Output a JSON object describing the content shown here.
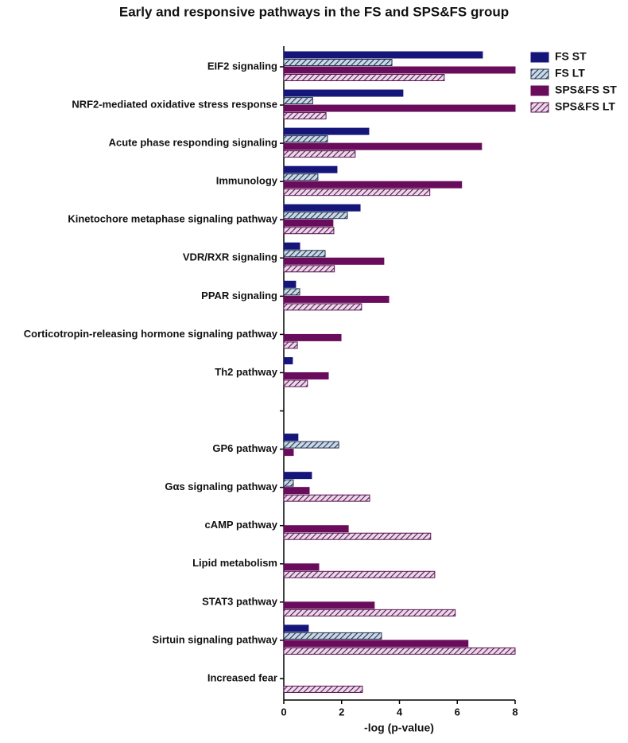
{
  "chart_data": {
    "type": "barh",
    "title": "Early and responsive pathways in the FS and SPS&FS group",
    "xlabel": "-log (p-value)",
    "categories": [
      "EIF2 signaling",
      "NRF2-mediated oxidative stress response",
      "Acute phase responding signaling",
      "Immunology",
      "Kinetochore metaphase signaling pathway",
      "VDR/RXR signaling",
      "PPAR signaling",
      "Corticotropin-releasing hormone signaling pathway",
      "Th2 pathway",
      null,
      "GP6 pathway",
      "Gαs signaling pathway",
      "cAMP pathway",
      "Lipid metabolism",
      "STAT3 pathway",
      "Sirtuin signaling pathway",
      "Increased fear"
    ],
    "series": [
      {
        "name": "FS ST",
        "color": "#16167a",
        "hatch": false,
        "values": [
          6.87,
          4.12,
          2.94,
          1.84,
          2.64,
          0.55,
          0.41,
          0,
          0.3,
          null,
          0.49,
          0.96,
          0,
          0,
          0,
          0.85,
          0
        ]
      },
      {
        "name": "FS LT",
        "color": "#c9d9e8",
        "edge_color": "#22334a",
        "hatch": true,
        "values": [
          3.74,
          1.0,
          1.51,
          1.18,
          2.2,
          1.43,
          0.55,
          0,
          0,
          null,
          1.9,
          0.33,
          0,
          0,
          0,
          3.38,
          0
        ]
      },
      {
        "name": "SPS&FS ST",
        "color": "#6a0c5c",
        "hatch": false,
        "values": [
          8,
          8,
          6.84,
          6.15,
          1.7,
          3.46,
          3.63,
          1.98,
          1.54,
          null,
          0.33,
          0.88,
          2.23,
          1.21,
          3.13,
          6.37,
          0
        ]
      },
      {
        "name": "SPS&FS LT",
        "color": "#ead9ea",
        "edge_color": "#5a1450",
        "hatch": true,
        "values": [
          5.55,
          1.46,
          2.47,
          5.05,
          1.73,
          1.75,
          2.69,
          0.47,
          0.82,
          null,
          0,
          2.97,
          5.08,
          5.22,
          5.93,
          8,
          2.72
        ]
      }
    ],
    "xlim": [
      0,
      8
    ],
    "xticks": [
      0,
      2,
      4,
      6,
      8
    ],
    "legend": "upper right"
  }
}
